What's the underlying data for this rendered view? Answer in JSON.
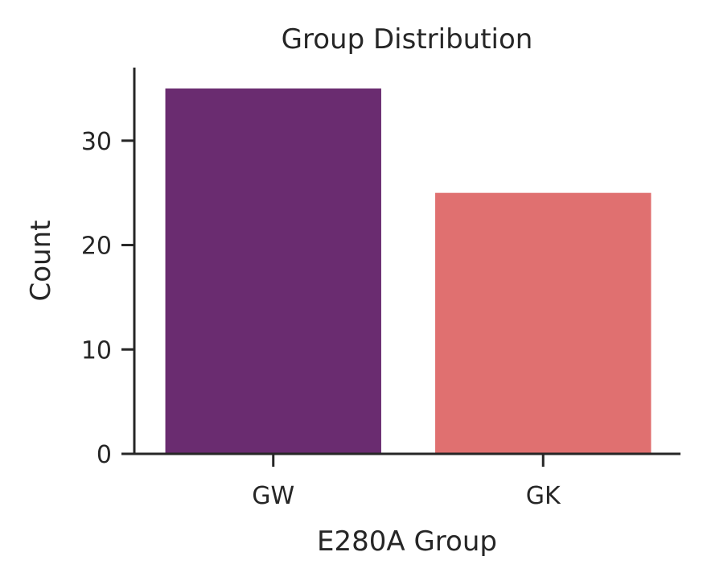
{
  "chart_data": {
    "type": "bar",
    "title": "Group Distribution",
    "xlabel": "E280A Group",
    "ylabel": "Count",
    "categories": [
      "GW",
      "GK"
    ],
    "values": [
      35,
      25
    ],
    "colors": [
      "#6a2c70",
      "#e07070"
    ],
    "ylim": [
      0,
      37
    ],
    "yticks": [
      0,
      10,
      20,
      30
    ],
    "grid": false
  }
}
